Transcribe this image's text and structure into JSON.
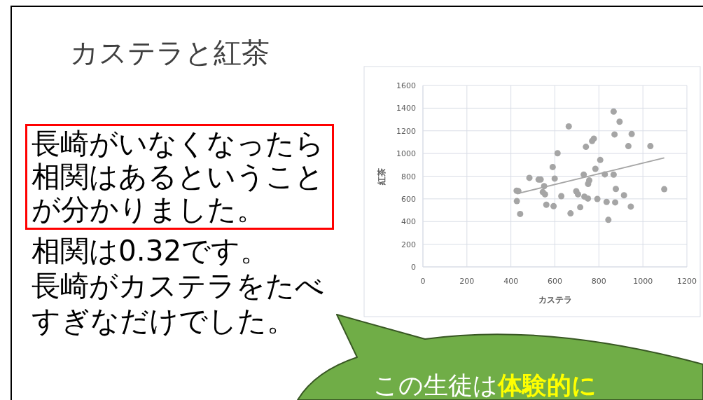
{
  "chart_data": {
    "type": "scatter",
    "title": "カステラと紅茶",
    "xlabel": "カステラ",
    "ylabel": "紅茶",
    "xlim": [
      0,
      1200
    ],
    "xticks": [
      0,
      200,
      400,
      600,
      800,
      1000,
      1200
    ],
    "ylim": [
      0,
      1600
    ],
    "yticks": [
      0,
      200,
      400,
      600,
      800,
      1000,
      1200,
      1400,
      1600
    ],
    "grid": true,
    "series": [
      {
        "color": "#a5a5a5",
        "marker": "circle",
        "x": [
          867,
          894,
          663,
          871,
          949,
          777,
          769,
          741,
          934,
          1034,
          612,
          806,
          590,
          784,
          731,
          827,
          867,
          535,
          599,
          756,
          751,
          551,
          545,
          555,
          877,
          1097,
          697,
          705,
          629,
          734,
          750,
          793,
          914,
          835,
          874,
          561,
          594,
          715,
          945,
          671,
          843,
          426,
          434,
          427,
          442,
          484,
          526
        ],
        "values": [
          1370,
          1280,
          1239,
          1168,
          1172,
          1131,
          1110,
          1059,
          1065,
          1065,
          1002,
          943,
          881,
          865,
          814,
          816,
          814,
          771,
          779,
          763,
          732,
          712,
          660,
          640,
          687,
          685,
          667,
          640,
          624,
          620,
          603,
          599,
          632,
          573,
          569,
          548,
          536,
          526,
          532,
          472,
          415,
          672,
          668,
          580,
          467,
          785,
          770
        ]
      },
      {
        "type": "line",
        "marker": "none",
        "color": "#a5a5a5",
        "x": [
          426,
          1097
        ],
        "values": [
          645,
          961
        ]
      }
    ],
    "annotations": [
      "長崎がいなくなったら相関はあるということが分かりました。",
      "相関は0.32です。",
      "長崎がカステラをたべすぎなだけでした。",
      "この生徒は",
      "体験的に"
    ]
  }
}
